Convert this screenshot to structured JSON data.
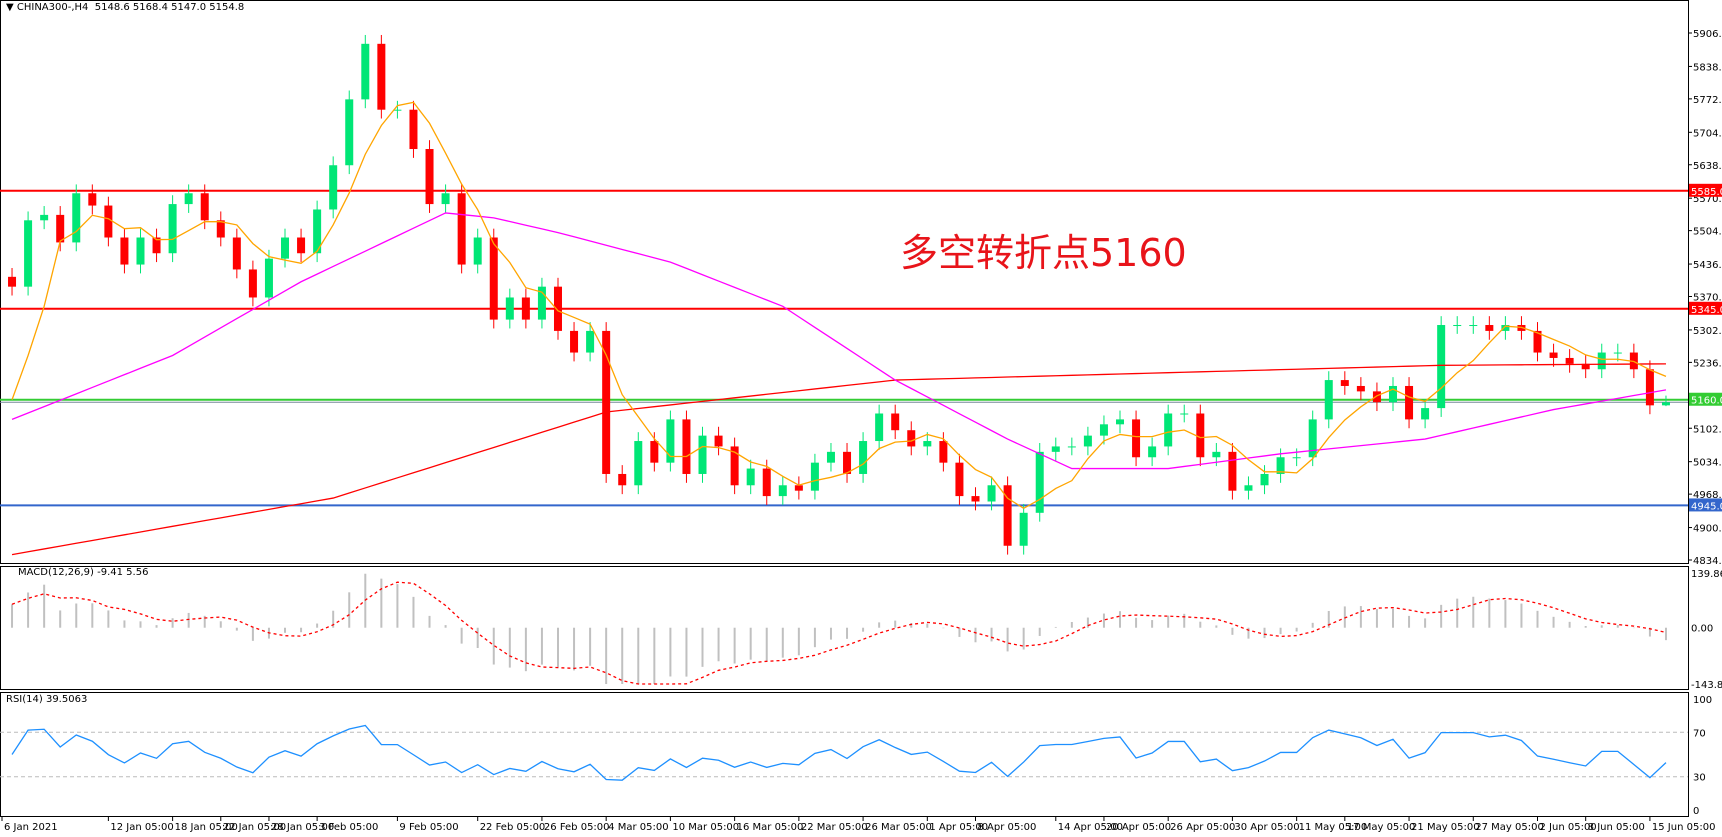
{
  "header": {
    "symbol": "CHINA300-,H4",
    "ohlc": "5148.6 5168.4 5147.0 5154.8"
  },
  "annotation": "多空转折点5160",
  "colors": {
    "bull": "#00e676",
    "bear": "#ff0000",
    "ma_fast": "#ffa500",
    "ma_mid": "#ff00ff",
    "ma_slow": "#ff0000",
    "line_5585": "#ff0000",
    "line_5345": "#ff0000",
    "line_5160": "#33cc33",
    "line_4945": "#3366cc",
    "rsi": "#1e90ff",
    "macd_hist": "#c0c0c0",
    "macd_signal": "#ff0000"
  },
  "chart_data": {
    "type": "candlestick",
    "price_axis": {
      "ticks": [
        "5906.0",
        "5838.0",
        "5772.0",
        "5704.0",
        "5638.0",
        "5570.0",
        "5504.0",
        "5436.0",
        "5370.0",
        "5302.0",
        "5236.0",
        "5102.0",
        "5034.0",
        "4968.0",
        "4900.0",
        "4834.0"
      ],
      "range": [
        4834,
        5906
      ]
    },
    "closes": [
      5390,
      5525,
      5536,
      5480,
      5580,
      5555,
      5490,
      5435,
      5490,
      5458,
      5558,
      5580,
      5525,
      5490,
      5425,
      5368,
      5447,
      5490,
      5458,
      5547,
      5637,
      5771,
      5884,
      5750,
      5750,
      5670,
      5558,
      5580,
      5435,
      5490,
      5323,
      5368,
      5323,
      5390,
      5300,
      5256,
      5300,
      5009,
      4986,
      5076,
      5032,
      5120,
      5009,
      5087,
      5065,
      4986,
      5020,
      4964,
      4986,
      4975,
      5032,
      5054,
      5009,
      5076,
      5132,
      5098,
      5065,
      5076,
      5032,
      4964,
      4953,
      4986,
      4863,
      4930,
      5054,
      5065,
      5065,
      5087,
      5110,
      5120,
      5043,
      5065,
      5132,
      5132,
      5043,
      5054,
      4975,
      4986,
      5009,
      5043,
      5043,
      5120,
      5200,
      5188,
      5177,
      5155,
      5188,
      5120,
      5143,
      5312,
      5312,
      5312,
      5300,
      5312,
      5300,
      5256,
      5245,
      5233,
      5222,
      5256,
      5256,
      5222,
      5148.6,
      5154.8
    ],
    "last_candle": {
      "open": 5148.6,
      "high": 5168.4,
      "low": 5147.0,
      "close": 5154.8
    },
    "ma_mid": [
      [
        0,
        5120
      ],
      [
        10,
        5250
      ],
      [
        18,
        5400
      ],
      [
        27,
        5540
      ],
      [
        30,
        5530
      ],
      [
        34,
        5500
      ],
      [
        41,
        5440
      ],
      [
        48,
        5350
      ],
      [
        55,
        5200
      ],
      [
        62,
        5080
      ],
      [
        66,
        5020
      ],
      [
        72,
        5020
      ],
      [
        79,
        5050
      ],
      [
        88,
        5080
      ],
      [
        96,
        5140
      ],
      [
        103,
        5180
      ]
    ],
    "ma_slow": [
      [
        0,
        4845
      ],
      [
        20,
        4960
      ],
      [
        37,
        5135
      ],
      [
        55,
        5200
      ],
      [
        89,
        5230
      ],
      [
        103,
        5233
      ]
    ],
    "levels": [
      {
        "value": 5585,
        "label": "5585.0",
        "color": "#ff0000"
      },
      {
        "value": 5345,
        "label": "5345.0",
        "color": "#ff0000"
      },
      {
        "value": 5160,
        "label": "5160.0",
        "color": "#33cc33"
      },
      {
        "value": 4945,
        "label": "4945.0",
        "color": "#3366cc"
      }
    ],
    "x_ticks": [
      [
        0,
        "6 Jan 2021"
      ],
      [
        6,
        "12 Jan 05:00"
      ],
      [
        10,
        "18 Jan 05:00"
      ],
      [
        13,
        "22 Jan 05:00"
      ],
      [
        16,
        "28 Jan 05:00"
      ],
      [
        19,
        "3 Feb 05:00"
      ],
      [
        24,
        "9 Feb 05:00"
      ],
      [
        29,
        "22 Feb 05:00"
      ],
      [
        33,
        "26 Feb 05:00"
      ],
      [
        37,
        "4 Mar 05:00"
      ],
      [
        41,
        "10 Mar 05:00"
      ],
      [
        45,
        "16 Mar 05:00"
      ],
      [
        49,
        "22 Mar 05:00"
      ],
      [
        53,
        "26 Mar 05:00"
      ],
      [
        57,
        "1 Apr 05:00"
      ],
      [
        60,
        "8 Apr 05:00"
      ],
      [
        65,
        "14 Apr 05:00"
      ],
      [
        68,
        "20 Apr 05:00"
      ],
      [
        72,
        "26 Apr 05:00"
      ],
      [
        76,
        "30 Apr 05:00"
      ],
      [
        80,
        "11 May 05:00"
      ],
      [
        83,
        "17 May 05:00"
      ],
      [
        87,
        "21 May 05:00"
      ],
      [
        91,
        "27 May 05:00"
      ],
      [
        95,
        "2 Jun 05:00"
      ],
      [
        98,
        "8 Jun 05:00"
      ],
      [
        102,
        "15 Jun 05:00"
      ]
    ],
    "macd": {
      "label": "MACD(12,26,9) -9.41 5.56",
      "ticks": [
        "139.86",
        "0.00",
        "-143.82"
      ],
      "range": [
        -143.82,
        139.86
      ]
    },
    "rsi": {
      "label": "RSI(14) 39.5063",
      "ticks": [
        "100",
        "70",
        "30",
        "0"
      ],
      "levels": [
        70,
        30
      ]
    }
  }
}
